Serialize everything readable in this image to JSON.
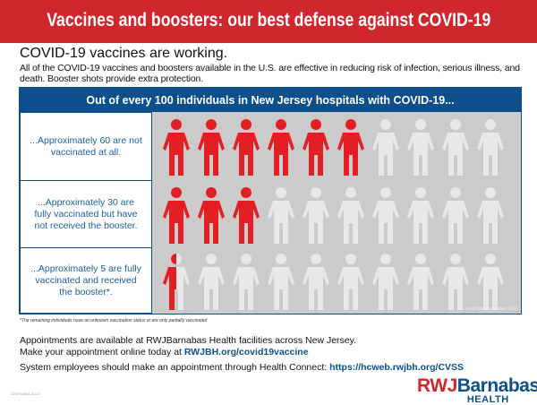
{
  "banner": {
    "title": "Vaccines and boosters: our best defense against COVID-19"
  },
  "intro": {
    "heading": "COVID-19 vaccines are working.",
    "body": "All of the COVID-19 vaccines and boosters available in the U.S. are effective in reducing risk of infection, serious illness, and death. Booster shots provide extra protection."
  },
  "table": {
    "header": "Out of every 100 individuals in New Jersey hospitals with COVID-19...",
    "rows": [
      {
        "label": "...Approximately 60 are not vaccinated at all.",
        "value": 60
      },
      {
        "label": "...Approximately 30 are fully vaccinated but have not received the booster.",
        "value": 30
      },
      {
        "label": "...Approximately 5 are fully vaccinated and received the booster*.",
        "value": 5
      }
    ],
    "figures_per_row": 10,
    "as_of": "As of late December 2021",
    "colors": {
      "highlight": "#e31e24",
      "neutral": "#e8e8e8",
      "header": "#0d4f8b",
      "background": "#cbcbcb"
    }
  },
  "footnote": "*The remaining individuals have an unknown vaccination status or are only partially vaccinated",
  "appointments": {
    "line1": "Appointments are available at RWJBarnabas Health facilities across New Jersey.",
    "line2_prefix": "Make your appointment online today at ",
    "line2_link": "RWJBH.org/covid19vaccine",
    "system_prefix": "System employees should make an appointment through Health Connect: ",
    "system_link": "https://hcweb.rwjbh.org/CVSS"
  },
  "doc_code": "22SYS0604-01/22",
  "logo": {
    "part1": "RWJ",
    "part2": "Barnabas",
    "part3": "HEALTH"
  }
}
